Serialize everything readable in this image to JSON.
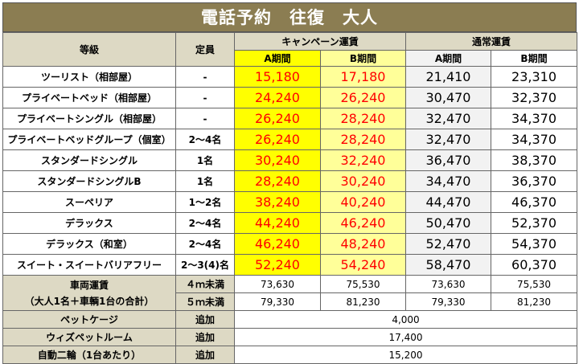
{
  "title": "電話予約　往復　大人",
  "headers": {
    "grade": "等級",
    "capacity": "定員",
    "campaign": "キャンペーン運賃",
    "regular": "通常運賃",
    "campaign_a": "A期間",
    "campaign_b": "B期間",
    "regular_a": "A期間",
    "regular_b": "B期間"
  },
  "rows": [
    {
      "grade": "ツーリスト（相部屋）",
      "capacity": "-",
      "campA": "15,180",
      "campB": "17,180",
      "regA": "21,410",
      "regB": "23,310"
    },
    {
      "grade": "プライベートベッド（相部屋）",
      "capacity": "-",
      "campA": "24,240",
      "campB": "26,240",
      "regA": "30,470",
      "regB": "32,370"
    },
    {
      "grade": "プライベートシングル（相部屋）",
      "capacity": "-",
      "campA": "26,240",
      "campB": "28,240",
      "regA": "32,470",
      "regB": "34,370"
    },
    {
      "grade": "プライベートベッドグループ（個室）",
      "capacity": "2～4名",
      "campA": "26,240",
      "campB": "28,240",
      "regA": "32,470",
      "regB": "34,370"
    },
    {
      "grade": "スタンダードシングル",
      "capacity": "1名",
      "campA": "30,240",
      "campB": "32,240",
      "regA": "36,470",
      "regB": "38,370"
    },
    {
      "grade": "スタンダードシングルB",
      "capacity": "1名",
      "campA": "28,240",
      "campB": "30,240",
      "regA": "34,470",
      "regB": "36,370"
    },
    {
      "grade": "スーペリア",
      "capacity": "1～2名",
      "campA": "38,240",
      "campB": "40,240",
      "regA": "44,470",
      "regB": "46,370"
    },
    {
      "grade": "デラックス",
      "capacity": "2～4名",
      "campA": "44,240",
      "campB": "46,240",
      "regA": "50,470",
      "regB": "52,370"
    },
    {
      "grade": "デラックス（和室）",
      "capacity": "2～4名",
      "campA": "46,240",
      "campB": "48,240",
      "regA": "52,470",
      "regB": "54,370"
    },
    {
      "grade": "スイート・スイートバリアフリー",
      "capacity": "2～3(4)名",
      "campA": "52,240",
      "campB": "54,240",
      "regA": "58,470",
      "regB": "60,370"
    }
  ],
  "vehicle": {
    "label_line1": "車両運賃",
    "label_line2": "（大人1名＋車輌1台の合計）",
    "rows": [
      {
        "size": "４ｍ未満",
        "campA": "73,630",
        "campB": "75,530",
        "regA": "73,630",
        "regB": "75,530"
      },
      {
        "size": "５ｍ未満",
        "campA": "79,330",
        "campB": "81,230",
        "regA": "79,330",
        "regB": "81,230"
      }
    ]
  },
  "extras": [
    {
      "label": "ペットケージ",
      "unit": "追加",
      "price": "4,000"
    },
    {
      "label": "ウィズペットルーム",
      "unit": "追加",
      "price": "17,400"
    },
    {
      "label": "自動二輪（1台あたり）",
      "unit": "追加",
      "price": "15,200"
    }
  ]
}
